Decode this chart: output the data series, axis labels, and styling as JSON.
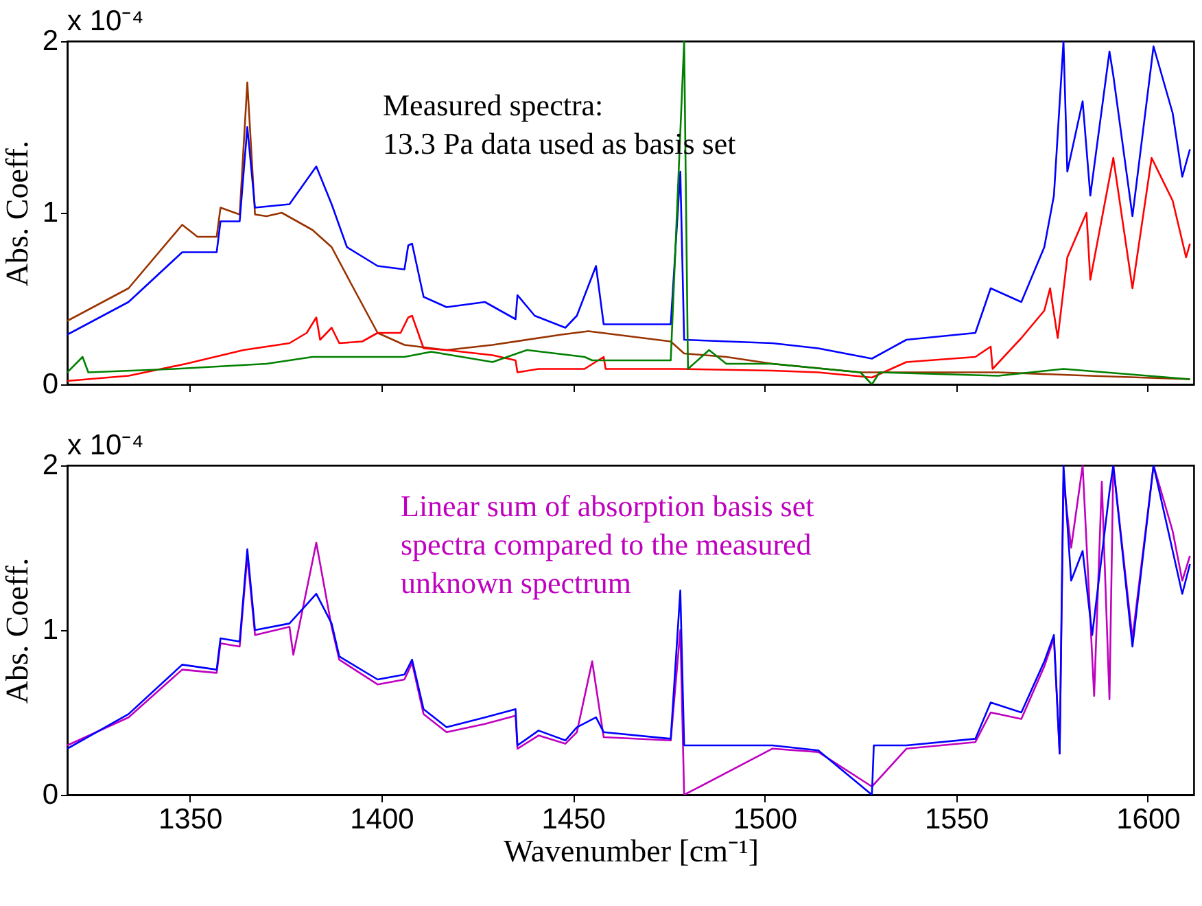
{
  "chart_data": [
    {
      "type": "line",
      "ylabel": "Abs. Coeff.",
      "annotations": [
        "x 10⁻⁴",
        "Measured spectra:\n13.3 Pa data used as basis set"
      ],
      "xlim": [
        1318,
        1612
      ],
      "xticks": [
        1350,
        1400,
        1450,
        1500,
        1550,
        1600
      ],
      "ylim": [
        0,
        2
      ],
      "yticks": [
        0,
        1,
        2
      ],
      "tick_labels": "y",
      "series": [
        {
          "color": "#993300",
          "x": [
            1318,
            1334,
            1348,
            1352,
            1357,
            1358,
            1363,
            1365,
            1367,
            1370,
            1374,
            1382,
            1387,
            1392,
            1399,
            1406,
            1417,
            1429,
            1447,
            1454,
            1475.5,
            1479,
            1490,
            1502,
            1525,
            1561,
            1585,
            1611
          ],
          "values": [
            0.37,
            0.56,
            0.93,
            0.86,
            0.86,
            1.03,
            0.99,
            1.76,
            0.99,
            0.98,
            1.0,
            0.9,
            0.8,
            0.59,
            0.3,
            0.23,
            0.2,
            0.23,
            0.29,
            0.31,
            0.25,
            0.18,
            0.16,
            0.12,
            0.07,
            0.07,
            0.05,
            0.03
          ]
        },
        {
          "color": "#0000ff",
          "x": [
            1318,
            1334,
            1348,
            1357,
            1358,
            1363,
            1365,
            1367,
            1376,
            1383,
            1387,
            1391,
            1399,
            1406,
            1407,
            1408,
            1411,
            1417,
            1427,
            1435,
            1435.5,
            1440,
            1448,
            1451,
            1456,
            1458,
            1475.5,
            1478,
            1479,
            1502,
            1514,
            1528,
            1537,
            1555,
            1559,
            1567,
            1573,
            1575.5,
            1578,
            1579,
            1583,
            1585,
            1590,
            1591,
            1596,
            1601.5,
            1606.5,
            1609,
            1611
          ],
          "values": [
            0.29,
            0.48,
            0.77,
            0.77,
            0.95,
            0.95,
            1.5,
            1.03,
            1.05,
            1.27,
            1.05,
            0.8,
            0.69,
            0.67,
            0.81,
            0.82,
            0.51,
            0.45,
            0.48,
            0.38,
            0.52,
            0.4,
            0.33,
            0.4,
            0.69,
            0.35,
            0.35,
            1.24,
            0.26,
            0.24,
            0.21,
            0.15,
            0.26,
            0.3,
            0.56,
            0.48,
            0.8,
            1.1,
            2.0,
            1.24,
            1.65,
            1.1,
            1.94,
            1.8,
            0.98,
            1.97,
            1.58,
            1.21,
            1.37
          ]
        },
        {
          "color": "#ff0000",
          "x": [
            1318,
            1334,
            1349,
            1364,
            1376,
            1380.5,
            1383,
            1384,
            1387,
            1389,
            1395,
            1399,
            1405,
            1407,
            1408,
            1411,
            1417,
            1429,
            1435,
            1435.5,
            1441,
            1453,
            1458,
            1458.5,
            1478,
            1502,
            1514,
            1528,
            1537,
            1555,
            1559,
            1559.5,
            1567,
            1573,
            1574.5,
            1576.5,
            1579,
            1584,
            1585,
            1591,
            1596,
            1601,
            1606.5,
            1610,
            1611
          ],
          "values": [
            0.02,
            0.05,
            0.12,
            0.2,
            0.24,
            0.3,
            0.39,
            0.26,
            0.33,
            0.24,
            0.25,
            0.3,
            0.3,
            0.39,
            0.4,
            0.21,
            0.2,
            0.17,
            0.14,
            0.07,
            0.09,
            0.09,
            0.16,
            0.09,
            0.09,
            0.08,
            0.07,
            0.04,
            0.13,
            0.16,
            0.22,
            0.09,
            0.27,
            0.43,
            0.56,
            0.27,
            0.74,
            1.0,
            0.61,
            1.32,
            0.56,
            1.32,
            1.07,
            0.74,
            0.82
          ]
        },
        {
          "color": "#008000",
          "x": [
            1318,
            1322,
            1323.5,
            1346,
            1370,
            1382,
            1406,
            1413,
            1429,
            1438,
            1453,
            1455,
            1469,
            1475.5,
            1479,
            1480,
            1485.5,
            1490,
            1502,
            1525,
            1528,
            1530,
            1561,
            1578,
            1611
          ],
          "values": [
            0.07,
            0.16,
            0.07,
            0.09,
            0.12,
            0.16,
            0.16,
            0.19,
            0.13,
            0.2,
            0.16,
            0.14,
            0.14,
            0.14,
            2.0,
            0.09,
            0.2,
            0.12,
            0.12,
            0.07,
            0.0,
            0.07,
            0.05,
            0.09,
            0.03
          ]
        }
      ]
    },
    {
      "type": "line",
      "xlabel": "Wavenumber [cm⁻¹]",
      "ylabel": "Abs. Coeff.",
      "annotations": [
        "x 10⁻⁴",
        "Linear sum of absorption basis set\nspectra compared to the measured\nunknown spectrum"
      ],
      "xlim": [
        1318,
        1612
      ],
      "xticks": [
        1350,
        1400,
        1450,
        1500,
        1550,
        1600
      ],
      "ylim": [
        0,
        2
      ],
      "yticks": [
        0,
        1,
        2
      ],
      "series": [
        {
          "color": "#bf00bf",
          "x": [
            1318,
            1334,
            1348,
            1357,
            1358,
            1363,
            1365,
            1367,
            1376,
            1377,
            1383,
            1387,
            1389,
            1399,
            1406,
            1408,
            1411,
            1417,
            1427,
            1435,
            1435.5,
            1441,
            1448,
            1451,
            1455,
            1458,
            1475.5,
            1478,
            1479,
            1502,
            1514,
            1528,
            1537,
            1555,
            1559,
            1567,
            1573,
            1575.5,
            1577,
            1578,
            1580,
            1583,
            1586,
            1588,
            1590,
            1591,
            1596,
            1601.5,
            1606.5,
            1609,
            1611
          ],
          "values": [
            0.3,
            0.47,
            0.76,
            0.74,
            0.92,
            0.9,
            1.45,
            0.97,
            1.02,
            0.85,
            1.53,
            1.02,
            0.82,
            0.67,
            0.7,
            0.8,
            0.49,
            0.38,
            0.43,
            0.48,
            0.28,
            0.36,
            0.31,
            0.38,
            0.81,
            0.35,
            0.33,
            1.0,
            0.0,
            0.28,
            0.26,
            0.05,
            0.28,
            0.32,
            0.5,
            0.46,
            0.78,
            0.95,
            0.25,
            1.9,
            1.5,
            2.0,
            0.6,
            1.9,
            0.58,
            2.0,
            0.95,
            2.0,
            1.6,
            1.3,
            1.45
          ]
        },
        {
          "color": "#0000ff",
          "x": [
            1318,
            1334,
            1348,
            1357,
            1358,
            1363,
            1365,
            1367,
            1376,
            1383,
            1387,
            1389,
            1399,
            1406,
            1408,
            1411,
            1417,
            1427,
            1435,
            1435.5,
            1441,
            1448,
            1451,
            1456,
            1458,
            1475.5,
            1478,
            1479,
            1502,
            1514,
            1528,
            1528.5,
            1537,
            1555,
            1559,
            1567,
            1573,
            1575.5,
            1577,
            1578,
            1580,
            1583,
            1585.5,
            1590,
            1591,
            1596,
            1601.5,
            1606.5,
            1609,
            1611
          ],
          "values": [
            0.28,
            0.49,
            0.79,
            0.76,
            0.95,
            0.93,
            1.49,
            1.0,
            1.04,
            1.22,
            1.04,
            0.84,
            0.7,
            0.73,
            0.82,
            0.52,
            0.41,
            0.47,
            0.52,
            0.3,
            0.39,
            0.33,
            0.41,
            0.47,
            0.38,
            0.34,
            1.24,
            0.3,
            0.3,
            0.27,
            0.0,
            0.3,
            0.3,
            0.34,
            0.56,
            0.5,
            0.81,
            0.97,
            0.25,
            2.0,
            1.3,
            1.48,
            0.97,
            1.84,
            2.0,
            0.9,
            2.0,
            1.48,
            1.22,
            1.4
          ]
        }
      ]
    }
  ]
}
